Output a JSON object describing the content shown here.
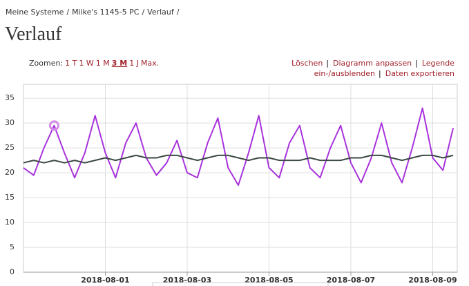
{
  "breadcrumb": [
    "Meine Systeme",
    "Miike's 1145-5 PC",
    "Verlauf"
  ],
  "breadcrumb_separator": "/",
  "heading": "Verlauf",
  "zoom": {
    "label": "Zoomen:",
    "options": [
      "1 T",
      "1 W",
      "1 M",
      "3 M",
      "1 J",
      "Max."
    ],
    "active": "3 M"
  },
  "actions": [
    "Löschen",
    "Diagramm anpassen",
    "Legende ein-/ausblenden",
    "Daten exportieren"
  ],
  "actions_separator": "|",
  "chart_data": {
    "type": "line",
    "grid": true,
    "x": [
      -2,
      -1.75,
      -1.5,
      -1.25,
      -1,
      -0.75,
      -0.5,
      -0.25,
      0,
      0.25,
      0.5,
      0.75,
      1,
      1.25,
      1.5,
      1.75,
      2,
      2.25,
      2.5,
      2.75,
      3,
      3.25,
      3.5,
      3.75,
      4,
      4.25,
      4.5,
      4.75,
      5,
      5.25,
      5.5,
      5.75,
      6,
      6.25,
      6.5,
      6.75,
      7,
      7.25,
      7.5,
      7.75,
      8,
      8.25,
      8.5
    ],
    "series": [
      {
        "color": "#a832dc",
        "values": [
          21,
          19.5,
          25,
          29.5,
          24,
          19,
          24,
          31.5,
          24,
          19,
          26,
          30,
          23,
          19.5,
          22,
          26.5,
          20,
          19,
          26,
          31,
          21,
          17.5,
          24,
          31.5,
          21,
          19,
          26,
          29.5,
          21,
          19,
          25,
          29.5,
          22,
          18,
          23,
          30,
          22,
          18,
          25,
          33,
          23,
          20.5,
          29
        ]
      },
      {
        "color": "#3b4a42",
        "values": [
          22,
          22.5,
          22,
          22.5,
          22,
          22.5,
          22,
          22.5,
          23,
          22.5,
          23,
          23.5,
          23,
          23,
          23.5,
          23.5,
          23,
          22.5,
          23,
          23.5,
          23.5,
          23,
          22.5,
          23,
          23,
          22.5,
          22.5,
          22.5,
          23,
          22.5,
          22.5,
          22.5,
          23,
          23,
          23.5,
          23.5,
          23,
          22.5,
          23,
          23.5,
          23.5,
          23,
          23.5
        ]
      }
    ],
    "xlim": [
      -2,
      8.6
    ],
    "xticks": [
      {
        "value": 0,
        "label": "2018-08-01"
      },
      {
        "value": 2,
        "label": "2018-08-03"
      },
      {
        "value": 4,
        "label": "2018-08-05"
      },
      {
        "value": 6,
        "label": "2018-08-07"
      },
      {
        "value": 8,
        "label": "2018-08-09"
      }
    ],
    "ylim": [
      0,
      37.8
    ],
    "yticks": [
      0,
      5,
      10,
      15,
      20,
      25,
      30,
      35
    ],
    "marker": {
      "x": -1.25,
      "y": 29.5,
      "color": "#d48be8"
    }
  }
}
